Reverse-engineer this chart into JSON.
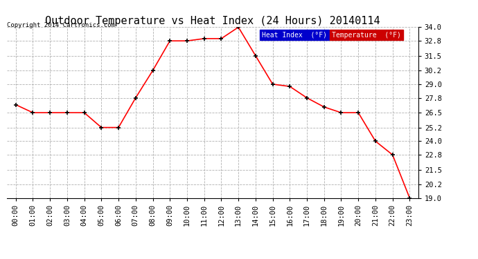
{
  "title": "Outdoor Temperature vs Heat Index (24 Hours) 20140114",
  "copyright": "Copyright 2014 Cartronics.com",
  "x_labels": [
    "00:00",
    "01:00",
    "02:00",
    "03:00",
    "04:00",
    "05:00",
    "06:00",
    "07:00",
    "08:00",
    "09:00",
    "10:00",
    "11:00",
    "12:00",
    "13:00",
    "14:00",
    "15:00",
    "16:00",
    "17:00",
    "18:00",
    "19:00",
    "20:00",
    "21:00",
    "22:00",
    "23:00"
  ],
  "temperature": [
    27.2,
    26.5,
    26.5,
    26.5,
    26.5,
    25.2,
    25.2,
    27.8,
    30.2,
    32.8,
    32.8,
    33.0,
    33.0,
    34.0,
    31.5,
    29.0,
    28.8,
    27.8,
    27.0,
    26.5,
    26.5,
    24.0,
    22.8,
    19.0
  ],
  "ylim": [
    19.0,
    34.0
  ],
  "yticks": [
    19.0,
    20.2,
    21.5,
    22.8,
    24.0,
    25.2,
    26.5,
    27.8,
    29.0,
    30.2,
    31.5,
    32.8,
    34.0
  ],
  "temp_color": "#ff0000",
  "heat_index_color": "#000000",
  "background_color": "#ffffff",
  "grid_color": "#b0b0b0",
  "title_fontsize": 11,
  "legend_heat_bg": "#0000cc",
  "legend_temp_bg": "#cc0000",
  "legend_heat_label": "Heat Index  (°F)",
  "legend_temp_label": "Temperature  (°F)"
}
